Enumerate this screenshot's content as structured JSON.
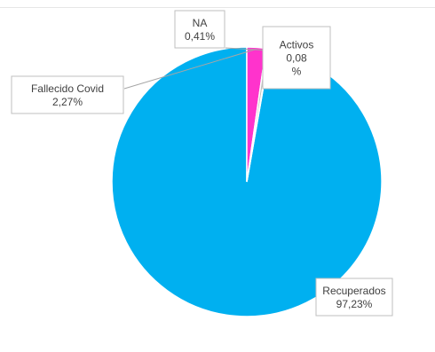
{
  "chart_data": {
    "type": "pie",
    "slices": [
      {
        "label": "Recuperados",
        "value": 97.23,
        "display": "97,23%",
        "color": "#00b0f0"
      },
      {
        "label": "Fallecido Covid",
        "value": 2.27,
        "display": "2,27%",
        "color": "#ff33cc"
      },
      {
        "label": "NA",
        "value": 0.41,
        "display": "0,41%",
        "color": "#c0c0c0"
      },
      {
        "label": "Activos",
        "value": 0.08,
        "display": "0,08 %",
        "color": "#f2a800"
      }
    ],
    "legend": false,
    "grid": false
  }
}
